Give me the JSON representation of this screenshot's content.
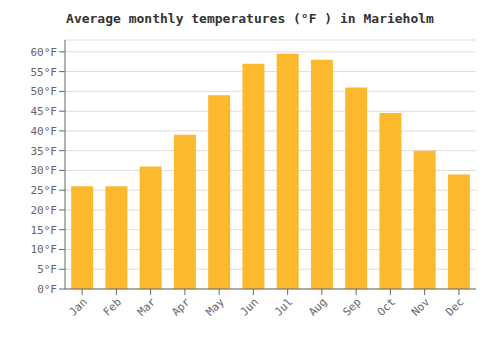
{
  "chart_data": {
    "type": "bar",
    "title": "Average monthly temperatures (°F ) in Marieholm",
    "categories": [
      "Jan",
      "Feb",
      "Mar",
      "Apr",
      "May",
      "Jun",
      "Jul",
      "Aug",
      "Sep",
      "Oct",
      "Nov",
      "Dec"
    ],
    "values": [
      26,
      26,
      31,
      39,
      49,
      57,
      59.5,
      58,
      51,
      44.5,
      35,
      29
    ],
    "color": "#FDB92E",
    "ylim": [
      0,
      63
    ],
    "yticks": [
      {
        "value": 0,
        "label": "0°F"
      },
      {
        "value": 5,
        "label": "5°F"
      },
      {
        "value": 10,
        "label": "10°F"
      },
      {
        "value": 15,
        "label": "15°F"
      },
      {
        "value": 20,
        "label": "20°F"
      },
      {
        "value": 25,
        "label": "25°F"
      },
      {
        "value": 30,
        "label": "30°F"
      },
      {
        "value": 35,
        "label": "35°F"
      },
      {
        "value": 40,
        "label": "40°F"
      },
      {
        "value": 45,
        "label": "45°F"
      },
      {
        "value": 50,
        "label": "50°F"
      },
      {
        "value": 55,
        "label": "55°F"
      },
      {
        "value": 60,
        "label": "60°F"
      }
    ],
    "grid": true
  }
}
